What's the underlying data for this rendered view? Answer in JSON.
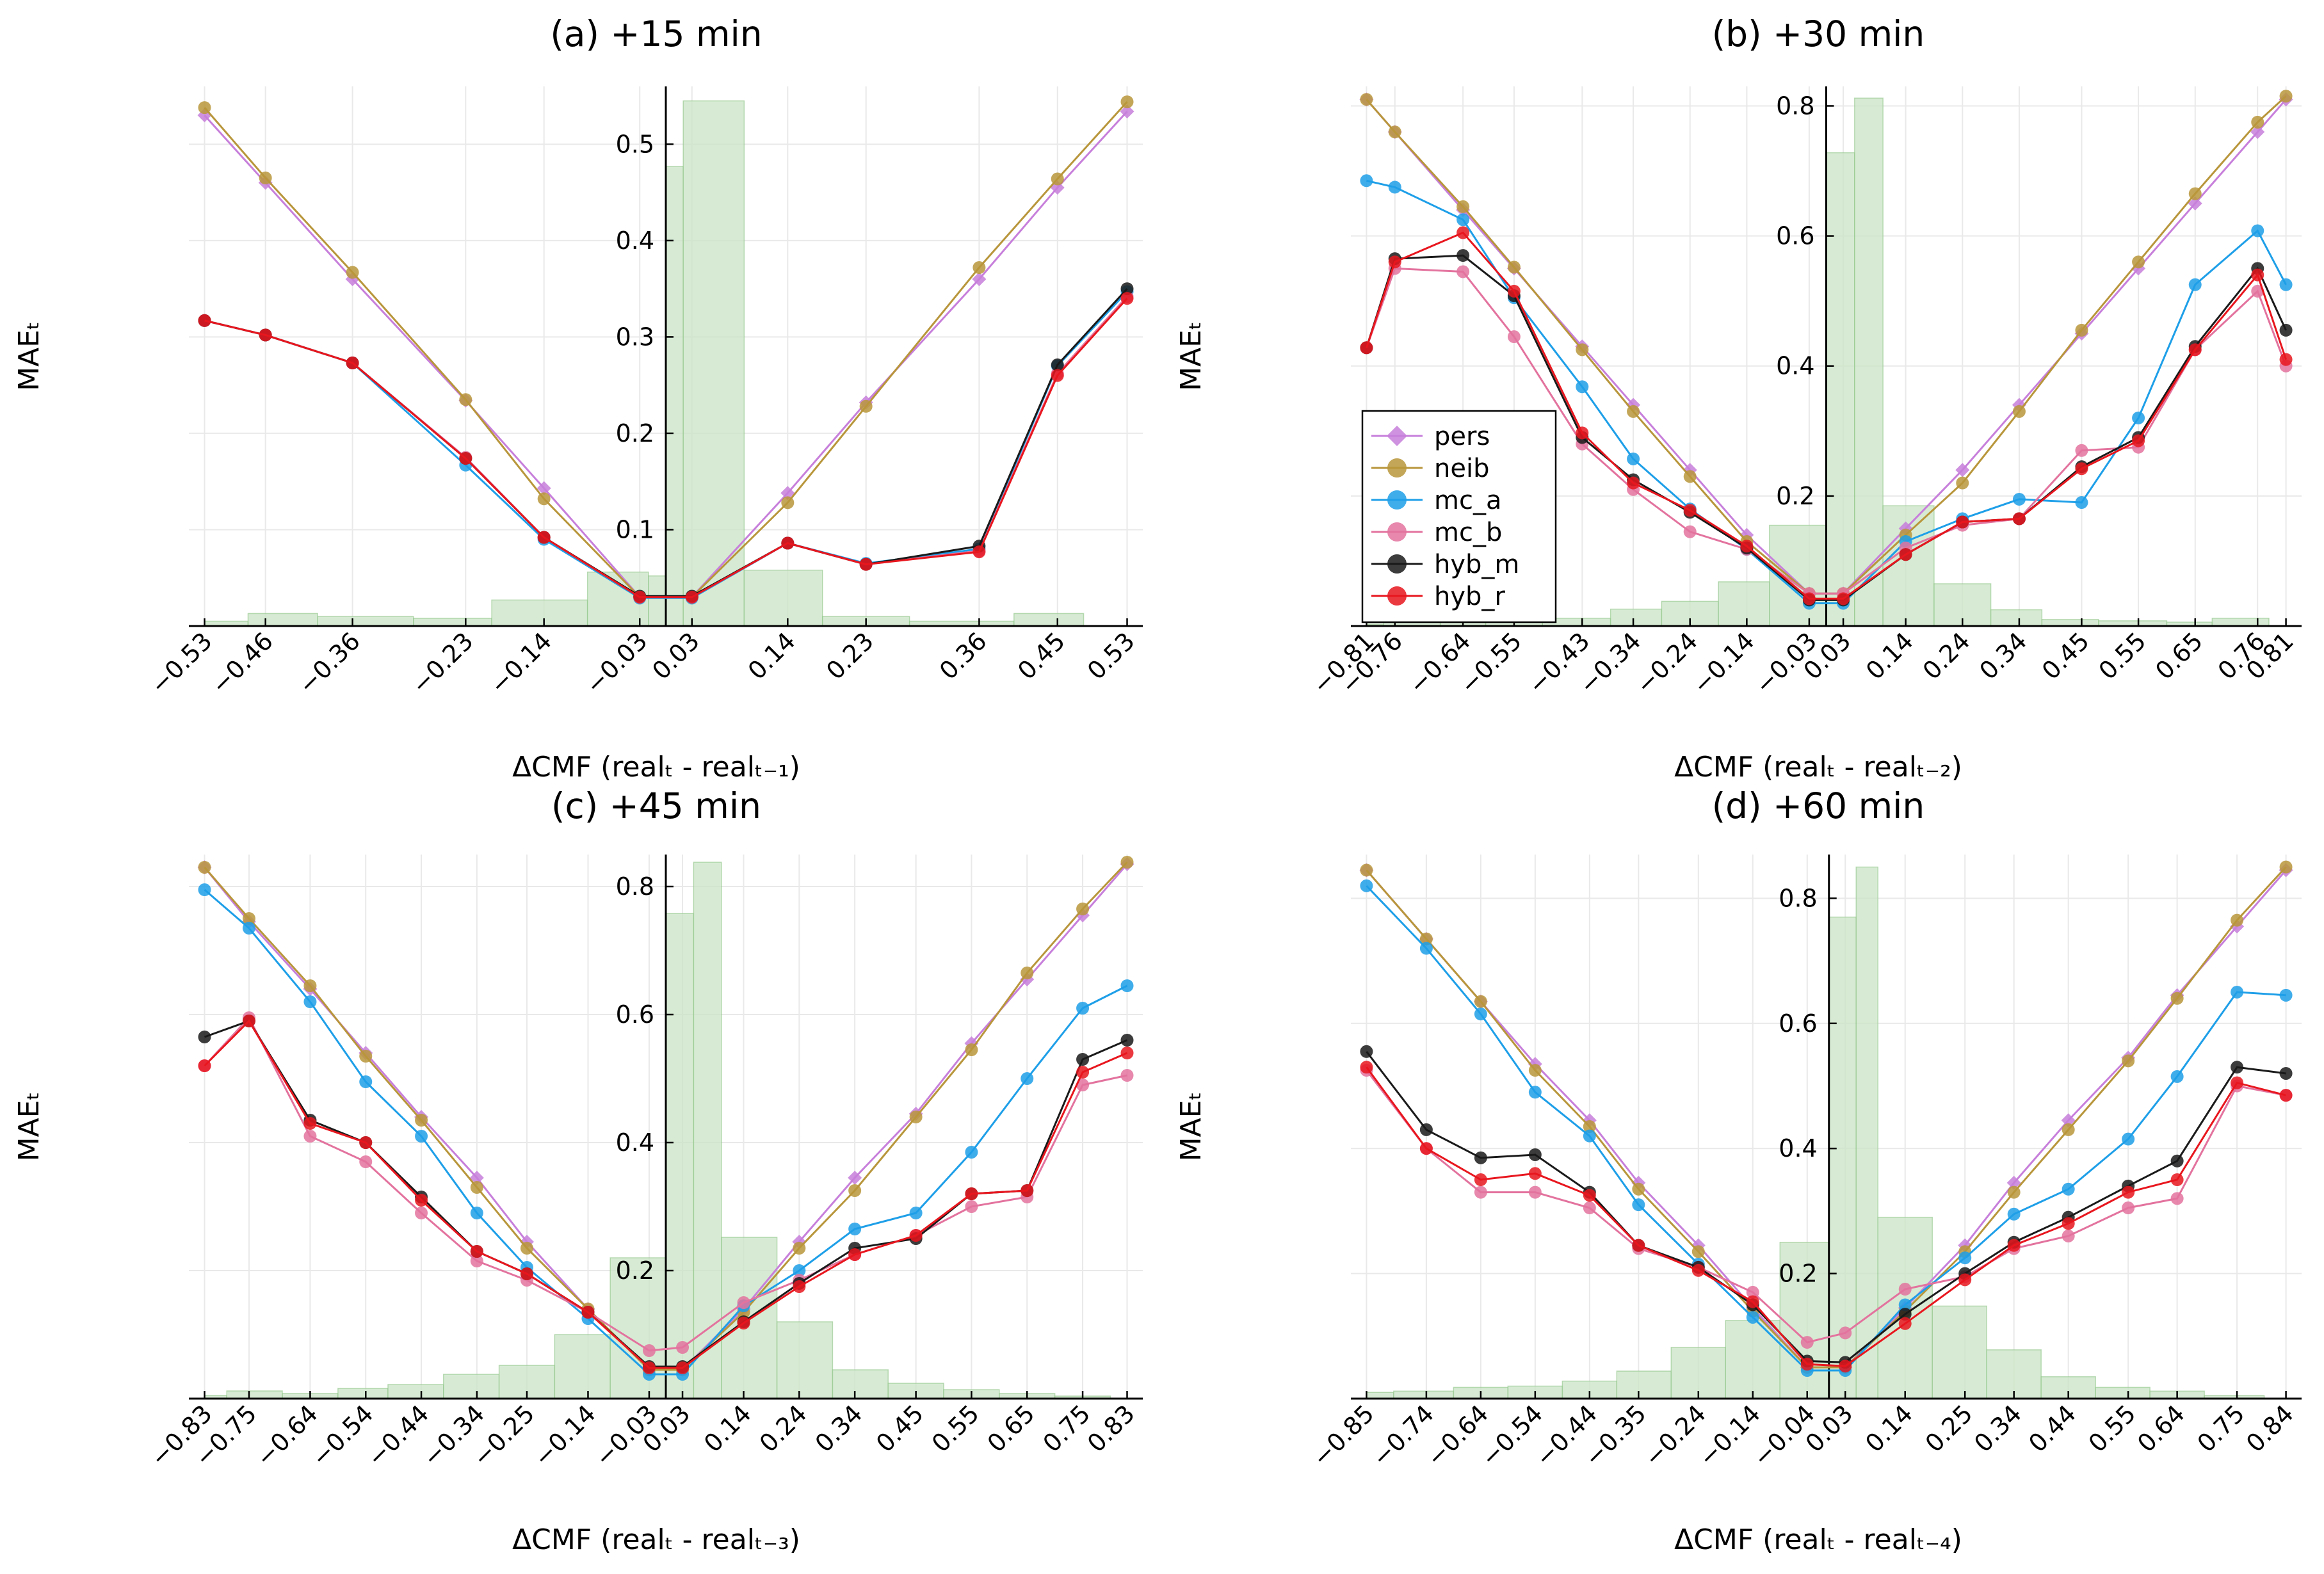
{
  "legend": [
    {
      "name": "pers",
      "color": "#c77fdb",
      "marker": "diamond"
    },
    {
      "name": "neib",
      "color": "#b8963b",
      "marker": "circle"
    },
    {
      "name": "mc_a",
      "color": "#1e9fe8",
      "marker": "circle"
    },
    {
      "name": "mc_b",
      "color": "#e3739e",
      "marker": "circle"
    },
    {
      "name": "hyb_m",
      "color": "#1a1a1a",
      "marker": "circle"
    },
    {
      "name": "hyb_r",
      "color": "#e8161e",
      "marker": "circle"
    }
  ],
  "colors": {
    "hist_fill": "#c9e4c5",
    "hist_stroke": "#8fc487",
    "grid": "#e9e9e9"
  },
  "chart_data": [
    {
      "type": "line",
      "title": "(a) +15 min",
      "ylabel": "MAEₜ",
      "xlabel": "ΔCMF (realₜ - realₜ₋₁)",
      "show_legend": false,
      "ylim": [
        0,
        0.56
      ],
      "yticks": [
        0.1,
        0.2,
        0.3,
        0.4,
        0.5
      ],
      "yticklabels": [
        "0.1",
        "0.2",
        "0.3",
        "0.4",
        "0.5"
      ],
      "x": [
        -0.53,
        -0.46,
        -0.36,
        -0.23,
        -0.14,
        -0.03,
        0.03,
        0.14,
        0.23,
        0.36,
        0.45,
        0.53
      ],
      "xticklabels": [
        "−0.53",
        "−0.46",
        "−0.36",
        "−0.23",
        "−0.14",
        "−0.03",
        "0.03",
        "0.14",
        "0.23",
        "0.36",
        "0.45",
        "0.53"
      ],
      "hist_edges": [
        -0.53,
        -0.48,
        -0.4,
        -0.29,
        -0.2,
        -0.09,
        -0.02,
        0.0,
        0.02,
        0.09,
        0.18,
        0.28,
        0.4,
        0.48,
        0.56
      ],
      "hist_values": [
        0.005,
        0.013,
        0.01,
        0.008,
        0.027,
        0.056,
        0.052,
        0.477,
        0.545,
        0.058,
        0.01,
        0.005,
        0.013,
        0.0
      ],
      "series": [
        {
          "name": "pers",
          "values": [
            0.53,
            0.46,
            0.36,
            0.234,
            0.143,
            0.03,
            0.03,
            0.138,
            0.232,
            0.36,
            0.455,
            0.534
          ]
        },
        {
          "name": "neib",
          "values": [
            0.538,
            0.465,
            0.367,
            0.235,
            0.132,
            0.03,
            0.03,
            0.128,
            0.228,
            0.372,
            0.464,
            0.544
          ]
        },
        {
          "name": "mc_a",
          "values": [
            0.317,
            0.302,
            0.273,
            0.167,
            0.09,
            0.029,
            0.029,
            0.086,
            0.065,
            0.08,
            0.27,
            0.347
          ]
        },
        {
          "name": "mc_b",
          "values": [
            0.317,
            0.302,
            0.273,
            0.175,
            0.092,
            0.03,
            0.03,
            0.086,
            0.064,
            0.078,
            0.262,
            0.342
          ]
        },
        {
          "name": "hyb_m",
          "values": [
            0.317,
            0.302,
            0.273,
            0.174,
            0.092,
            0.031,
            0.031,
            0.086,
            0.064,
            0.083,
            0.271,
            0.35
          ]
        },
        {
          "name": "hyb_r",
          "values": [
            0.317,
            0.302,
            0.273,
            0.174,
            0.092,
            0.03,
            0.03,
            0.086,
            0.064,
            0.077,
            0.26,
            0.34
          ]
        }
      ]
    },
    {
      "type": "line",
      "title": "(b) +30 min",
      "ylabel": "MAEₜ",
      "xlabel": "ΔCMF (realₜ - realₜ₋₂)",
      "show_legend": true,
      "ylim": [
        0,
        0.83
      ],
      "yticks": [
        0.2,
        0.4,
        0.6,
        0.8
      ],
      "yticklabels": [
        "0.2",
        "0.4",
        "0.6",
        "0.8"
      ],
      "x": [
        -0.81,
        -0.76,
        -0.64,
        -0.55,
        -0.43,
        -0.34,
        -0.24,
        -0.14,
        -0.03,
        0.03,
        0.14,
        0.24,
        0.34,
        0.45,
        0.55,
        0.65,
        0.76,
        0.81
      ],
      "xticklabels": [
        "−0.81",
        "−0.76",
        "−0.64",
        "−0.55",
        "−0.43",
        "−0.34",
        "−0.24",
        "−0.14",
        "−0.03",
        "0.03",
        "0.14",
        "0.24",
        "0.34",
        "0.45",
        "0.55",
        "0.65",
        "0.76",
        "0.81"
      ],
      "hist_edges": [
        -0.81,
        -0.78,
        -0.68,
        -0.6,
        -0.5,
        -0.38,
        -0.29,
        -0.19,
        -0.1,
        0.0,
        0.05,
        0.1,
        0.19,
        0.29,
        0.38,
        0.48,
        0.6,
        0.68,
        0.78,
        0.81
      ],
      "hist_values": [
        0.003,
        0.018,
        0.01,
        0.008,
        0.012,
        0.026,
        0.038,
        0.068,
        0.155,
        0.728,
        0.812,
        0.185,
        0.065,
        0.025,
        0.01,
        0.008,
        0.006,
        0.012,
        0.0
      ],
      "series": [
        {
          "name": "pers",
          "values": [
            0.81,
            0.76,
            0.64,
            0.55,
            0.43,
            0.34,
            0.24,
            0.14,
            0.05,
            0.05,
            0.15,
            0.24,
            0.34,
            0.45,
            0.55,
            0.65,
            0.76,
            0.81
          ]
        },
        {
          "name": "neib",
          "values": [
            0.81,
            0.76,
            0.645,
            0.552,
            0.425,
            0.33,
            0.23,
            0.13,
            0.05,
            0.05,
            0.14,
            0.22,
            0.33,
            0.455,
            0.56,
            0.665,
            0.775,
            0.815
          ]
        },
        {
          "name": "mc_a",
          "values": [
            0.685,
            0.675,
            0.625,
            0.505,
            0.368,
            0.257,
            0.18,
            0.118,
            0.035,
            0.035,
            0.13,
            0.165,
            0.195,
            0.19,
            0.32,
            0.525,
            0.608,
            0.525
          ]
        },
        {
          "name": "mc_b",
          "values": [
            0.428,
            0.55,
            0.545,
            0.445,
            0.28,
            0.21,
            0.145,
            0.118,
            0.05,
            0.05,
            0.12,
            0.155,
            0.165,
            0.27,
            0.275,
            0.425,
            0.515,
            0.4
          ]
        },
        {
          "name": "hyb_m",
          "values": [
            0.428,
            0.565,
            0.57,
            0.508,
            0.29,
            0.225,
            0.175,
            0.12,
            0.04,
            0.04,
            0.11,
            0.16,
            0.165,
            0.245,
            0.29,
            0.43,
            0.55,
            0.455
          ]
        },
        {
          "name": "hyb_r",
          "values": [
            0.428,
            0.56,
            0.605,
            0.515,
            0.297,
            0.22,
            0.178,
            0.123,
            0.042,
            0.042,
            0.11,
            0.16,
            0.165,
            0.242,
            0.285,
            0.425,
            0.54,
            0.41
          ]
        }
      ]
    },
    {
      "type": "line",
      "title": "(c) +45 min",
      "ylabel": "MAEₜ",
      "xlabel": "ΔCMF (realₜ - realₜ₋₃)",
      "show_legend": false,
      "ylim": [
        0,
        0.85
      ],
      "yticks": [
        0.2,
        0.4,
        0.6,
        0.8
      ],
      "yticklabels": [
        "0.2",
        "0.4",
        "0.6",
        "0.8"
      ],
      "x": [
        -0.83,
        -0.75,
        -0.64,
        -0.54,
        -0.44,
        -0.34,
        -0.25,
        -0.14,
        -0.03,
        0.03,
        0.14,
        0.24,
        0.34,
        0.45,
        0.55,
        0.65,
        0.75,
        0.83
      ],
      "xticklabels": [
        "−0.83",
        "−0.75",
        "−0.64",
        "−0.54",
        "−0.44",
        "−0.34",
        "−0.25",
        "−0.14",
        "−0.03",
        "0.03",
        "0.14",
        "0.24",
        "0.34",
        "0.45",
        "0.55",
        "0.65",
        "0.75",
        "0.83"
      ],
      "hist_edges": [
        -0.83,
        -0.79,
        -0.69,
        -0.59,
        -0.5,
        -0.4,
        -0.3,
        -0.2,
        -0.1,
        0.0,
        0.05,
        0.1,
        0.2,
        0.3,
        0.4,
        0.5,
        0.6,
        0.7,
        0.8,
        0.83
      ],
      "hist_values": [
        0.005,
        0.012,
        0.008,
        0.016,
        0.022,
        0.038,
        0.052,
        0.1,
        0.22,
        0.758,
        0.838,
        0.252,
        0.12,
        0.045,
        0.024,
        0.014,
        0.008,
        0.004,
        0.0
      ],
      "series": [
        {
          "name": "pers",
          "values": [
            0.83,
            0.745,
            0.64,
            0.54,
            0.44,
            0.345,
            0.245,
            0.14,
            0.045,
            0.045,
            0.14,
            0.245,
            0.345,
            0.445,
            0.555,
            0.655,
            0.755,
            0.835
          ]
        },
        {
          "name": "neib",
          "values": [
            0.83,
            0.75,
            0.645,
            0.535,
            0.435,
            0.33,
            0.235,
            0.14,
            0.045,
            0.045,
            0.135,
            0.235,
            0.325,
            0.44,
            0.545,
            0.665,
            0.765,
            0.838
          ]
        },
        {
          "name": "mc_a",
          "values": [
            0.795,
            0.735,
            0.62,
            0.495,
            0.41,
            0.29,
            0.205,
            0.125,
            0.038,
            0.038,
            0.145,
            0.2,
            0.265,
            0.29,
            0.385,
            0.5,
            0.61,
            0.645
          ]
        },
        {
          "name": "mc_b",
          "values": [
            0.52,
            0.595,
            0.41,
            0.37,
            0.29,
            0.215,
            0.185,
            0.135,
            0.075,
            0.08,
            0.15,
            0.185,
            0.225,
            0.255,
            0.3,
            0.315,
            0.49,
            0.505
          ]
        },
        {
          "name": "hyb_m",
          "values": [
            0.565,
            0.59,
            0.435,
            0.4,
            0.315,
            0.23,
            0.195,
            0.135,
            0.05,
            0.05,
            0.12,
            0.18,
            0.235,
            0.25,
            0.32,
            0.325,
            0.53,
            0.56
          ]
        },
        {
          "name": "hyb_r",
          "values": [
            0.52,
            0.59,
            0.43,
            0.4,
            0.31,
            0.23,
            0.195,
            0.135,
            0.048,
            0.048,
            0.118,
            0.175,
            0.225,
            0.255,
            0.32,
            0.325,
            0.51,
            0.54
          ]
        }
      ]
    },
    {
      "type": "line",
      "title": "(d) +60 min",
      "ylabel": "MAEₜ",
      "xlabel": "ΔCMF (realₜ - realₜ₋₄)",
      "show_legend": false,
      "ylim": [
        0,
        0.87
      ],
      "yticks": [
        0.2,
        0.4,
        0.6,
        0.8
      ],
      "yticklabels": [
        "0.2",
        "0.4",
        "0.6",
        "0.8"
      ],
      "x": [
        -0.85,
        -0.74,
        -0.64,
        -0.54,
        -0.44,
        -0.35,
        -0.24,
        -0.14,
        -0.04,
        0.03,
        0.14,
        0.25,
        0.34,
        0.44,
        0.55,
        0.64,
        0.75,
        0.84
      ],
      "xticklabels": [
        "−0.85",
        "−0.74",
        "−0.64",
        "−0.54",
        "−0.44",
        "−0.35",
        "−0.24",
        "−0.14",
        "−0.04",
        "0.03",
        "0.14",
        "0.25",
        "0.34",
        "0.44",
        "0.55",
        "0.64",
        "0.75",
        "0.84"
      ],
      "hist_edges": [
        -0.85,
        -0.8,
        -0.69,
        -0.59,
        -0.49,
        -0.39,
        -0.29,
        -0.19,
        -0.09,
        0.0,
        0.05,
        0.09,
        0.19,
        0.29,
        0.39,
        0.49,
        0.59,
        0.69,
        0.8,
        0.84
      ],
      "hist_values": [
        0.01,
        0.012,
        0.018,
        0.02,
        0.028,
        0.044,
        0.082,
        0.125,
        0.25,
        0.77,
        0.85,
        0.29,
        0.148,
        0.078,
        0.035,
        0.018,
        0.012,
        0.005,
        0.0
      ],
      "series": [
        {
          "name": "pers",
          "values": [
            0.845,
            0.735,
            0.635,
            0.535,
            0.445,
            0.345,
            0.245,
            0.145,
            0.05,
            0.05,
            0.145,
            0.245,
            0.345,
            0.445,
            0.545,
            0.645,
            0.755,
            0.845
          ]
        },
        {
          "name": "neib",
          "values": [
            0.845,
            0.735,
            0.635,
            0.525,
            0.435,
            0.335,
            0.235,
            0.14,
            0.05,
            0.05,
            0.14,
            0.235,
            0.33,
            0.43,
            0.54,
            0.64,
            0.765,
            0.85
          ]
        },
        {
          "name": "mc_a",
          "values": [
            0.82,
            0.72,
            0.615,
            0.49,
            0.42,
            0.31,
            0.215,
            0.13,
            0.045,
            0.045,
            0.15,
            0.225,
            0.295,
            0.335,
            0.415,
            0.515,
            0.65,
            0.645
          ]
        },
        {
          "name": "mc_b",
          "values": [
            0.525,
            0.4,
            0.33,
            0.33,
            0.305,
            0.24,
            0.21,
            0.17,
            0.09,
            0.105,
            0.175,
            0.195,
            0.24,
            0.26,
            0.305,
            0.32,
            0.5,
            0.485
          ]
        },
        {
          "name": "hyb_m",
          "values": [
            0.555,
            0.43,
            0.385,
            0.39,
            0.33,
            0.245,
            0.21,
            0.15,
            0.06,
            0.058,
            0.135,
            0.2,
            0.25,
            0.29,
            0.34,
            0.38,
            0.53,
            0.52
          ]
        },
        {
          "name": "hyb_r",
          "values": [
            0.53,
            0.4,
            0.35,
            0.36,
            0.325,
            0.245,
            0.205,
            0.155,
            0.055,
            0.052,
            0.12,
            0.19,
            0.245,
            0.28,
            0.33,
            0.35,
            0.505,
            0.485
          ]
        }
      ]
    }
  ]
}
